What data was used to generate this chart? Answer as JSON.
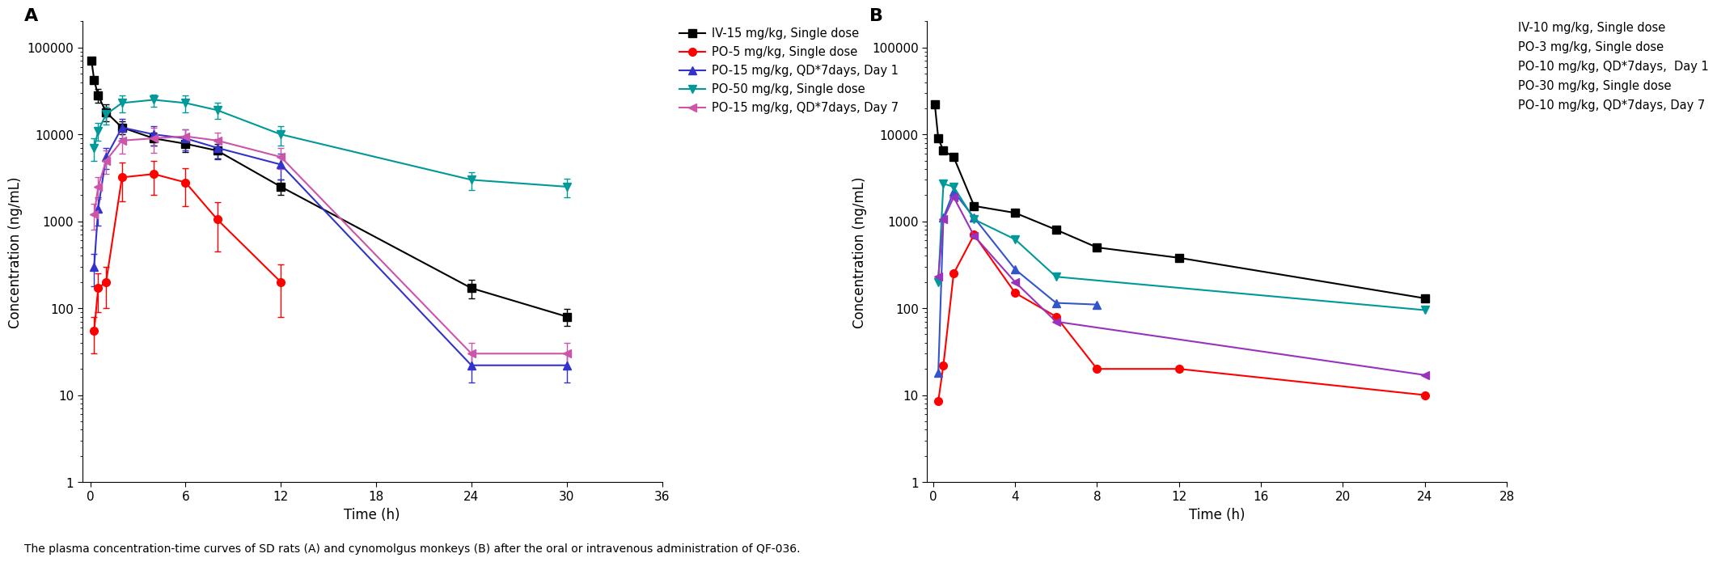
{
  "panel_A": {
    "title": "A",
    "xlabel": "Time (h)",
    "ylabel": "Concentration (ng/mL)",
    "xlim": [
      -0.5,
      36
    ],
    "xticks": [
      0,
      6,
      12,
      18,
      24,
      30,
      36
    ],
    "ylim_log": [
      1,
      200000
    ],
    "yticks": [
      1,
      10,
      100,
      1000,
      10000,
      100000
    ],
    "yticklabels": [
      "1",
      "10",
      "100",
      "1000",
      "10000",
      "100000"
    ],
    "series": [
      {
        "label": "IV-15 mg/kg, Single dose",
        "color": "#000000",
        "marker": "s",
        "markersize": 7,
        "linestyle": "-",
        "x": [
          0.083,
          0.25,
          0.5,
          1,
          2,
          4,
          6,
          8,
          12,
          24,
          30
        ],
        "y": [
          70000,
          42000,
          28000,
          18000,
          12000,
          9000,
          7800,
          6500,
          2500,
          170,
          80
        ],
        "yerr": [
          null,
          null,
          5000,
          4000,
          2000,
          1500,
          1500,
          1200,
          500,
          40,
          18
        ]
      },
      {
        "label": "PO-5 mg/kg, Single dose",
        "color": "#FF0000",
        "marker": "o",
        "markersize": 7,
        "linestyle": "-",
        "x": [
          0.25,
          0.5,
          1,
          2,
          4,
          6,
          8,
          12
        ],
        "y": [
          55,
          170,
          200,
          3200,
          3500,
          2800,
          1050,
          200
        ],
        "yerr": [
          25,
          80,
          100,
          1500,
          1500,
          1300,
          600,
          120
        ]
      },
      {
        "label": "PO-15 mg/kg, QD*7days, Day 1",
        "color": "#3333CC",
        "marker": "^",
        "markersize": 7,
        "linestyle": "-",
        "x": [
          0.25,
          0.5,
          1,
          2,
          4,
          6,
          8,
          12,
          24,
          30
        ],
        "y": [
          300,
          1400,
          5500,
          12000,
          10000,
          9000,
          7000,
          4500,
          22,
          22
        ],
        "yerr": [
          120,
          500,
          1500,
          3000,
          2500,
          2500,
          1800,
          1500,
          8,
          8
        ]
      },
      {
        "label": "PO-50 mg/kg, Single dose",
        "color": "#009999",
        "marker": "v",
        "markersize": 7,
        "linestyle": "-",
        "x": [
          0.25,
          0.5,
          1,
          2,
          4,
          6,
          8,
          12,
          24,
          30
        ],
        "y": [
          7000,
          11000,
          17000,
          23000,
          25000,
          23000,
          19000,
          10000,
          3000,
          2500
        ],
        "yerr": [
          2000,
          2500,
          4000,
          5000,
          4000,
          5000,
          4000,
          2500,
          700,
          600
        ]
      },
      {
        "label": "PO-15 mg/kg, QD*7days, Day 7",
        "color": "#CC55AA",
        "marker": "<",
        "markersize": 7,
        "linestyle": "-",
        "x": [
          0.25,
          0.5,
          1,
          2,
          4,
          6,
          8,
          12,
          24,
          30
        ],
        "y": [
          1200,
          2500,
          5000,
          8500,
          9000,
          9500,
          8500,
          5500,
          30,
          30
        ],
        "yerr": [
          400,
          700,
          1500,
          2500,
          2800,
          2000,
          2000,
          1500,
          10,
          10
        ]
      }
    ]
  },
  "panel_B": {
    "title": "B",
    "xlabel": "Time (h)",
    "ylabel": "Concentration (ng/mL)",
    "xlim": [
      -0.3,
      28
    ],
    "xticks": [
      0,
      4,
      8,
      12,
      16,
      20,
      24,
      28
    ],
    "ylim_log": [
      1,
      200000
    ],
    "yticks": [
      1,
      10,
      100,
      1000,
      10000,
      100000
    ],
    "yticklabels": [
      "1",
      "10",
      "100",
      "1000",
      "10000",
      "100000"
    ],
    "legend_labels": [
      "IV-10 mg/kg, Single dose",
      "PO-3 mg/kg, Single dose",
      "PO-10 mg/kg, QD*7days,  Day 1",
      "PO-30 mg/kg, Single dose",
      "PO-10 mg/kg, QD*7days, Day 7"
    ],
    "series": [
      {
        "label": "IV-10 mg/kg, Single dose",
        "color": "#000000",
        "marker": "s",
        "markersize": 7,
        "linestyle": "-",
        "x": [
          0.083,
          0.25,
          0.5,
          1,
          2,
          4,
          6,
          8,
          12,
          24
        ],
        "y": [
          22000,
          9000,
          6500,
          5500,
          1500,
          1250,
          800,
          500,
          380,
          130
        ],
        "yerr": [
          null,
          null,
          null,
          null,
          null,
          null,
          null,
          null,
          null,
          null
        ]
      },
      {
        "label": "PO-3 mg/kg, Single dose",
        "color": "#FF0000",
        "marker": "o",
        "markersize": 7,
        "linestyle": "-",
        "x": [
          0.25,
          0.5,
          1,
          2,
          4,
          6,
          8,
          12,
          24
        ],
        "y": [
          8.5,
          22,
          250,
          700,
          150,
          80,
          20,
          20,
          10
        ],
        "yerr": [
          null,
          null,
          null,
          null,
          null,
          null,
          null,
          null,
          null
        ]
      },
      {
        "label": "PO-10 mg/kg, QD*7days, Day 1",
        "color": "#3355CC",
        "marker": "^",
        "markersize": 7,
        "linestyle": "-",
        "x": [
          0.25,
          0.5,
          1,
          2,
          4,
          6,
          8,
          24
        ],
        "y": [
          18,
          1100,
          2200,
          1100,
          280,
          115,
          110,
          null
        ],
        "yerr": [
          null,
          null,
          null,
          null,
          null,
          null,
          null,
          null
        ]
      },
      {
        "label": "PO-30 mg/kg, Single dose",
        "color": "#009999",
        "marker": "v",
        "markersize": 7,
        "linestyle": "-",
        "x": [
          0.25,
          0.5,
          1,
          2,
          4,
          6,
          24
        ],
        "y": [
          200,
          2700,
          2500,
          1050,
          620,
          230,
          95
        ],
        "yerr": [
          null,
          null,
          null,
          null,
          null,
          null,
          null
        ]
      },
      {
        "label": "PO-10 mg/kg, QD*7days, Day 7",
        "color": "#9933BB",
        "marker": "<",
        "markersize": 7,
        "linestyle": "-",
        "x": [
          0.25,
          0.5,
          1,
          2,
          4,
          6,
          24
        ],
        "y": [
          230,
          1050,
          1900,
          680,
          200,
          70,
          17
        ],
        "yerr": [
          null,
          null,
          null,
          null,
          null,
          null,
          null
        ]
      }
    ]
  },
  "caption": "The plasma concentration-time curves of SD rats (A) and cynomolgus monkeys (B) after the oral or intravenous administration of QF-036.",
  "background_color": "#FFFFFF"
}
